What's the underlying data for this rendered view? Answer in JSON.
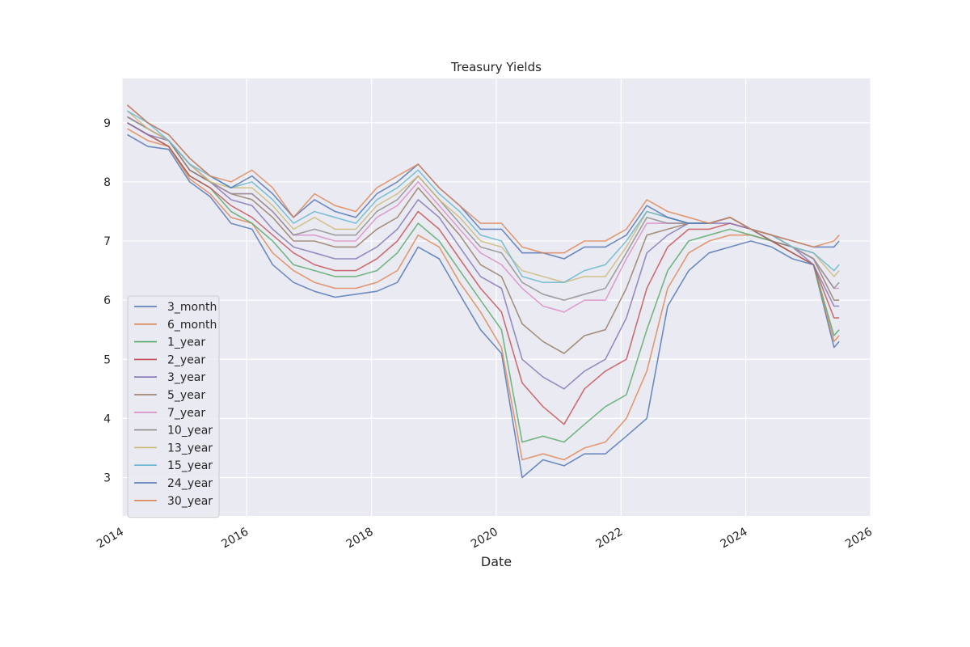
{
  "chart_data": {
    "type": "line",
    "title": "Treasury Yields",
    "xlabel": "Date",
    "ylabel": "",
    "x_range": [
      "2014-01-01",
      "2026-01-01"
    ],
    "ylim": [
      2.35,
      9.75
    ],
    "x_ticks": [
      "2014",
      "2016",
      "2018",
      "2020",
      "2022",
      "2024",
      "2026"
    ],
    "y_ticks": [
      "3",
      "4",
      "5",
      "6",
      "7",
      "8",
      "9"
    ],
    "grid": true,
    "legend_position": "lower-left",
    "x": [
      "2014-02",
      "2014-06",
      "2014-10",
      "2015-02",
      "2015-06",
      "2015-10",
      "2016-02",
      "2016-06",
      "2016-10",
      "2017-02",
      "2017-06",
      "2017-10",
      "2018-02",
      "2018-06",
      "2018-10",
      "2019-02",
      "2019-06",
      "2019-10",
      "2020-02",
      "2020-06",
      "2020-10",
      "2021-02",
      "2021-06",
      "2021-10",
      "2022-02",
      "2022-06",
      "2022-10",
      "2023-02",
      "2023-06",
      "2023-10",
      "2024-02",
      "2024-06",
      "2024-10",
      "2025-02",
      "2025-06",
      "2025-07"
    ],
    "series": [
      {
        "name": "3_month",
        "color": "#4c72b0",
        "values": [
          8.8,
          8.6,
          8.55,
          8.0,
          7.75,
          7.3,
          7.2,
          6.6,
          6.3,
          6.15,
          6.05,
          6.1,
          6.15,
          6.3,
          6.9,
          6.7,
          6.1,
          5.5,
          5.1,
          3.0,
          3.3,
          3.2,
          3.4,
          3.4,
          3.7,
          4.0,
          5.9,
          6.5,
          6.8,
          6.9,
          7.0,
          6.9,
          6.7,
          6.6,
          5.2,
          5.3
        ]
      },
      {
        "name": "6_month",
        "color": "#dd8452",
        "values": [
          8.9,
          8.7,
          8.6,
          8.05,
          7.8,
          7.4,
          7.3,
          6.8,
          6.5,
          6.3,
          6.2,
          6.2,
          6.3,
          6.5,
          7.1,
          6.9,
          6.3,
          5.8,
          5.2,
          3.3,
          3.4,
          3.3,
          3.5,
          3.6,
          4.0,
          4.8,
          6.2,
          6.8,
          7.0,
          7.1,
          7.1,
          7.0,
          6.8,
          6.6,
          5.3,
          5.4
        ]
      },
      {
        "name": "1_year",
        "color": "#55a868",
        "values": [
          9.0,
          8.8,
          8.6,
          8.1,
          7.9,
          7.5,
          7.3,
          7.0,
          6.6,
          6.5,
          6.4,
          6.4,
          6.5,
          6.8,
          7.3,
          7.0,
          6.5,
          6.0,
          5.5,
          3.6,
          3.7,
          3.6,
          3.9,
          4.2,
          4.4,
          5.5,
          6.5,
          7.0,
          7.1,
          7.2,
          7.1,
          7.0,
          6.8,
          6.6,
          5.4,
          5.5
        ]
      },
      {
        "name": "2_year",
        "color": "#c44e52",
        "values": [
          9.0,
          8.8,
          8.6,
          8.1,
          7.9,
          7.6,
          7.4,
          7.1,
          6.8,
          6.6,
          6.5,
          6.5,
          6.7,
          7.0,
          7.5,
          7.2,
          6.7,
          6.2,
          5.8,
          4.6,
          4.2,
          3.9,
          4.5,
          4.8,
          5.0,
          6.2,
          6.9,
          7.2,
          7.2,
          7.3,
          7.2,
          7.0,
          6.8,
          6.6,
          5.7,
          5.7
        ]
      },
      {
        "name": "3_year",
        "color": "#8172b3",
        "values": [
          9.0,
          8.8,
          8.7,
          8.2,
          8.0,
          7.7,
          7.6,
          7.2,
          6.9,
          6.8,
          6.7,
          6.7,
          6.9,
          7.2,
          7.7,
          7.4,
          6.9,
          6.4,
          6.2,
          5.0,
          4.7,
          4.5,
          4.8,
          5.0,
          5.7,
          6.8,
          7.1,
          7.3,
          7.3,
          7.3,
          7.2,
          7.0,
          6.9,
          6.6,
          5.9,
          5.9
        ]
      },
      {
        "name": "5_year",
        "color": "#937860",
        "values": [
          9.1,
          8.9,
          8.7,
          8.2,
          8.0,
          7.8,
          7.7,
          7.4,
          7.0,
          7.0,
          6.9,
          6.9,
          7.2,
          7.4,
          7.9,
          7.5,
          7.1,
          6.6,
          6.4,
          5.6,
          5.3,
          5.1,
          5.4,
          5.5,
          6.2,
          7.1,
          7.2,
          7.3,
          7.3,
          7.4,
          7.2,
          7.0,
          6.9,
          6.7,
          6.0,
          6.0
        ]
      },
      {
        "name": "7_year",
        "color": "#da8bc3",
        "values": [
          9.1,
          8.9,
          8.7,
          8.3,
          8.0,
          7.8,
          7.8,
          7.5,
          7.1,
          7.1,
          7.0,
          7.0,
          7.4,
          7.6,
          8.0,
          7.6,
          7.2,
          6.8,
          6.6,
          6.2,
          5.9,
          5.8,
          6.0,
          6.0,
          6.7,
          7.3,
          7.3,
          7.3,
          7.3,
          7.4,
          7.2,
          7.1,
          6.9,
          6.7,
          6.2,
          6.2
        ]
      },
      {
        "name": "10_year",
        "color": "#8c8c8c",
        "values": [
          9.1,
          8.9,
          8.7,
          8.3,
          8.0,
          7.8,
          7.8,
          7.5,
          7.1,
          7.2,
          7.1,
          7.1,
          7.5,
          7.7,
          8.1,
          7.7,
          7.3,
          6.9,
          6.8,
          6.3,
          6.1,
          6.0,
          6.1,
          6.2,
          6.8,
          7.4,
          7.3,
          7.3,
          7.3,
          7.4,
          7.2,
          7.1,
          6.9,
          6.7,
          6.2,
          6.3
        ]
      },
      {
        "name": "13_year",
        "color": "#ccb974",
        "values": [
          9.2,
          8.9,
          8.7,
          8.3,
          8.0,
          7.9,
          7.9,
          7.6,
          7.2,
          7.4,
          7.2,
          7.2,
          7.6,
          7.8,
          8.1,
          7.7,
          7.4,
          7.0,
          6.9,
          6.5,
          6.4,
          6.3,
          6.4,
          6.4,
          6.9,
          7.5,
          7.4,
          7.3,
          7.3,
          7.4,
          7.2,
          7.1,
          6.9,
          6.8,
          6.4,
          6.5
        ]
      },
      {
        "name": "15_year",
        "color": "#64b5cd",
        "values": [
          9.2,
          9.0,
          8.7,
          8.3,
          8.1,
          7.9,
          8.0,
          7.7,
          7.3,
          7.5,
          7.4,
          7.3,
          7.7,
          7.9,
          8.2,
          7.8,
          7.5,
          7.1,
          7.0,
          6.4,
          6.3,
          6.3,
          6.5,
          6.6,
          7.0,
          7.5,
          7.4,
          7.3,
          7.3,
          7.4,
          7.2,
          7.1,
          6.9,
          6.8,
          6.5,
          6.6
        ]
      },
      {
        "name": "24_year",
        "color": "#4c72b0",
        "values": [
          9.3,
          9.0,
          8.8,
          8.4,
          8.1,
          7.9,
          8.1,
          7.8,
          7.4,
          7.7,
          7.5,
          7.4,
          7.8,
          8.0,
          8.3,
          7.9,
          7.6,
          7.2,
          7.2,
          6.8,
          6.8,
          6.7,
          6.9,
          6.9,
          7.1,
          7.6,
          7.4,
          7.3,
          7.3,
          7.4,
          7.2,
          7.1,
          7.0,
          6.9,
          6.9,
          7.0
        ]
      },
      {
        "name": "30_year",
        "color": "#dd8452",
        "values": [
          9.3,
          9.0,
          8.8,
          8.4,
          8.1,
          8.0,
          8.2,
          7.9,
          7.4,
          7.8,
          7.6,
          7.5,
          7.9,
          8.1,
          8.3,
          7.9,
          7.6,
          7.3,
          7.3,
          6.9,
          6.8,
          6.8,
          7.0,
          7.0,
          7.2,
          7.7,
          7.5,
          7.4,
          7.3,
          7.4,
          7.2,
          7.1,
          7.0,
          6.9,
          7.0,
          7.1
        ]
      }
    ]
  }
}
